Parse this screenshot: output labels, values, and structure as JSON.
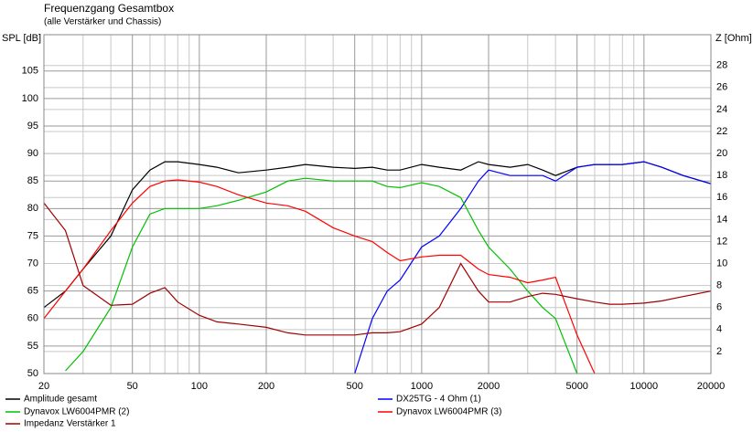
{
  "chart_data": {
    "type": "line",
    "title": "Frequenzgang Gesamtbox",
    "subtitle": "(alle Verstärker und Chassis)",
    "y_label": "SPL [dB]",
    "y2_label": "Z [Ohm]",
    "log_x": true,
    "x": [
      20,
      25,
      30,
      40,
      50,
      60,
      70,
      80,
      100,
      120,
      150,
      200,
      250,
      300,
      400,
      500,
      600,
      700,
      800,
      1000,
      1200,
      1500,
      1800,
      2000,
      2500,
      3000,
      3500,
      4000,
      5000,
      6000,
      7000,
      8000,
      10000,
      12000,
      15000,
      20000
    ],
    "xlim": [
      20,
      20000
    ],
    "xticks": [
      20,
      50,
      100,
      200,
      500,
      1000,
      2000,
      5000,
      10000,
      20000
    ],
    "xgrid": [
      30,
      40,
      60,
      70,
      80,
      90,
      300,
      400,
      600,
      700,
      800,
      900,
      3000,
      4000,
      6000,
      7000,
      8000,
      9000
    ],
    "ylim": [
      50,
      111.6
    ],
    "yticks": [
      50,
      55,
      60,
      65,
      70,
      75,
      80,
      85,
      90,
      95,
      100,
      105
    ],
    "y2lim": [
      0,
      30.8
    ],
    "y2ticks": [
      2,
      4,
      6,
      8,
      10,
      12,
      14,
      16,
      18,
      20,
      22,
      24,
      26,
      28
    ],
    "grid": true,
    "series": [
      {
        "name": "Amplitude gesamt",
        "color": "#000000",
        "values": [
          62,
          65,
          69,
          75,
          83.4,
          87,
          88.5,
          88.5,
          88,
          87.5,
          86.5,
          87,
          87.5,
          88,
          87.5,
          87.3,
          87.5,
          87,
          87,
          88,
          87.5,
          87,
          88.5,
          88,
          87.5,
          88,
          87,
          86,
          87.5,
          88,
          88,
          88,
          88.5,
          87.5,
          86,
          84.5
        ]
      },
      {
        "name": "DX25TG - 4 Ohm (1)",
        "color": "#0000ff",
        "values": [
          null,
          null,
          null,
          null,
          null,
          null,
          null,
          null,
          null,
          null,
          null,
          null,
          null,
          null,
          null,
          50,
          60,
          65,
          67,
          73,
          75,
          80,
          85,
          87,
          86,
          86,
          86,
          85,
          87.5,
          88,
          88,
          88,
          88.5,
          87.5,
          86,
          84.5
        ]
      },
      {
        "name": "Dynavox LW6004PMR (2)",
        "color": "#00c000",
        "values": [
          null,
          50.5,
          54,
          62,
          73,
          79,
          80,
          80,
          80,
          80.5,
          81.5,
          83,
          85,
          85.5,
          85,
          85,
          85,
          84,
          83.8,
          84.7,
          84,
          82,
          76,
          73,
          69,
          65,
          62,
          60,
          50,
          null,
          null,
          null,
          null,
          null,
          null,
          null
        ]
      },
      {
        "name": "Dynavox LW6004PMR (3)",
        "color": "#ff0000",
        "values": [
          60,
          65,
          69,
          76,
          81,
          84,
          85,
          85.2,
          84.8,
          84,
          82.5,
          81,
          80.5,
          79.5,
          76.5,
          75,
          74,
          72,
          70.5,
          71.2,
          71.5,
          71.5,
          69,
          68,
          67.5,
          66.5,
          67,
          67.5,
          57,
          50,
          null,
          null,
          null,
          null,
          null,
          null
        ]
      },
      {
        "name": "Impedanz Verstärker 1",
        "color": "#a00000",
        "axis": "y2",
        "values": [
          15.5,
          13,
          8,
          6.2,
          6.3,
          7.3,
          7.8,
          6.5,
          5.3,
          4.7,
          4.5,
          4.2,
          3.7,
          3.5,
          3.5,
          3.5,
          3.7,
          3.7,
          3.8,
          4.5,
          6,
          10,
          7.5,
          6.5,
          6.5,
          7,
          7.3,
          7.2,
          6.8,
          6.5,
          6.3,
          6.3,
          6.4,
          6.6,
          7,
          7.5
        ]
      }
    ]
  }
}
